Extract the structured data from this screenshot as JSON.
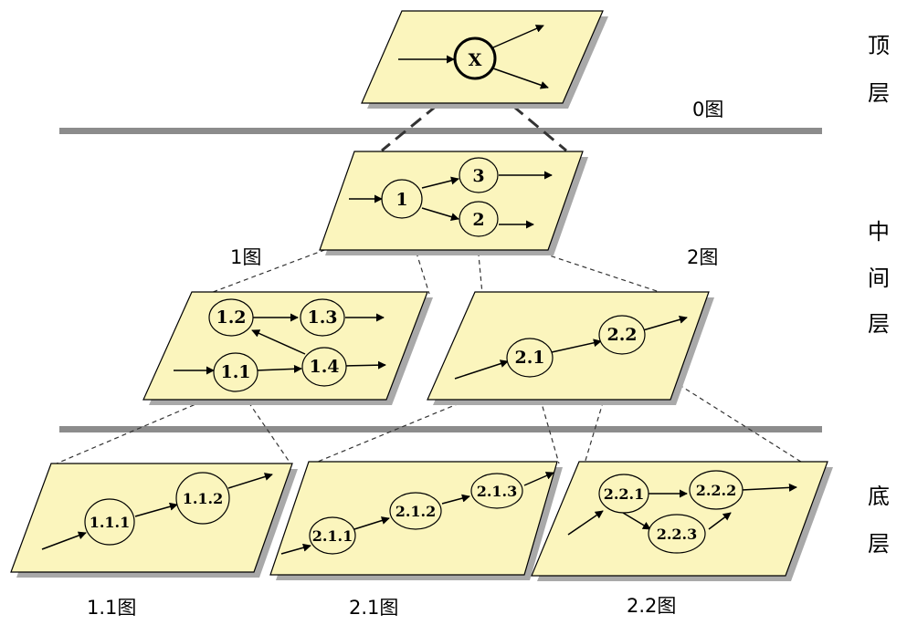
{
  "layers": {
    "top": [
      "顶",
      "层"
    ],
    "middle": [
      "中",
      "间",
      "层"
    ],
    "bottom": [
      "底",
      "层"
    ]
  },
  "captions": {
    "d0": "0图",
    "d1": "1图",
    "d2": "2图",
    "d11": "1.1图",
    "d21": "2.1图",
    "d22": "2.2图"
  },
  "nodes": {
    "x": "X",
    "n1": "1",
    "n2": "2",
    "n3": "3",
    "n1_1": "1.1",
    "n1_2": "1.2",
    "n1_3": "1.3",
    "n1_4": "1.4",
    "n2_1": "2.1",
    "n2_2": "2.2",
    "n1_1_1": "1.1.1",
    "n1_1_2": "1.1.2",
    "n2_1_1": "2.1.1",
    "n2_1_2": "2.1.2",
    "n2_1_3": "2.1.3",
    "n2_2_1": "2.2.1",
    "n2_2_2": "2.2.2",
    "n2_2_3": "2.2.3"
  },
  "colors": {
    "panel_fill": "#fbf5bd",
    "panel_shadow": "#a9a9a9",
    "separator": "#8c8c8c"
  }
}
